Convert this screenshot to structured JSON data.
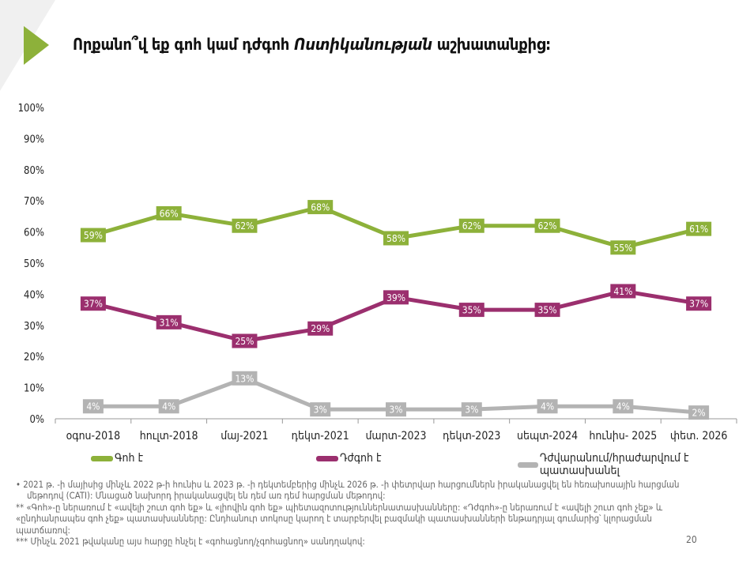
{
  "title": {
    "part1": "Որքանո՞վ եք գոհ կամ դժգոհ ",
    "italic": "Ոստիկանության",
    "part2": " աշխատանքից:"
  },
  "chart_data": {
    "type": "line",
    "categories": [
      "օգոս-2018",
      "հուլտ-2018",
      "մայ-2021",
      "դեկտ-2021",
      "մարտ-2023",
      "դեկտ-2023",
      "սեպտ-2024",
      "հունիս- 2025",
      "փետ. 2026"
    ],
    "ylim": [
      0,
      100
    ],
    "yticks": [
      "0%",
      "10%",
      "20%",
      "30%",
      "40%",
      "50%",
      "60%",
      "70%",
      "80%",
      "90%",
      "100%"
    ],
    "series": [
      {
        "name": "Գոհ է",
        "color": "#8db13a",
        "values": [
          59,
          66,
          62,
          68,
          58,
          62,
          62,
          55,
          61
        ]
      },
      {
        "name": "Դժգոհ է",
        "color": "#9b2f6e",
        "values": [
          37,
          31,
          25,
          29,
          39,
          35,
          35,
          41,
          37
        ]
      },
      {
        "name": "Դժվարանում/հրաժարվում է պատասխանել",
        "color": "#b3b3b3",
        "values": [
          4,
          4,
          13,
          3,
          3,
          3,
          4,
          4,
          2
        ]
      }
    ],
    "legend": "bottom",
    "grid": false
  },
  "footnotes": [
    "•  2021 թ. -ի մայիսից մինչև 2022 թ-ի հունիս և 2023 թ. -ի դեկտեմբերից մինչև 2026 թ. -ի փետրվար հարցումներն իրականացվել են հեռախոսային հարցման մեթոդով (CATI): Մնացած նախորդ իրականացվել են դեմ առ դեմ հարցման մեթոդով:",
    "** «Գոհ»-ը ներառում է «ավելի շուտ գոհ եք» և «լիովին գոհ եք» պիետազոտություններնատասխանները: «Դժգոհ»-ը ներառում է «ավելի շուտ գոհ չեք» և «ընդհանրապես գոհ չեք» պատասխանները: Ընդհանուր տոկոսը կարող է տարբերվել բազմակի պատասխանների ենթադրյալ գումարից՝ կլորացման պատճառով:",
    "*** Մինչև 2021 թվականը այս հարցը հնչել է «գոհացնող/չգոհացնող» սանդղակով:"
  ],
  "page_number": "20"
}
